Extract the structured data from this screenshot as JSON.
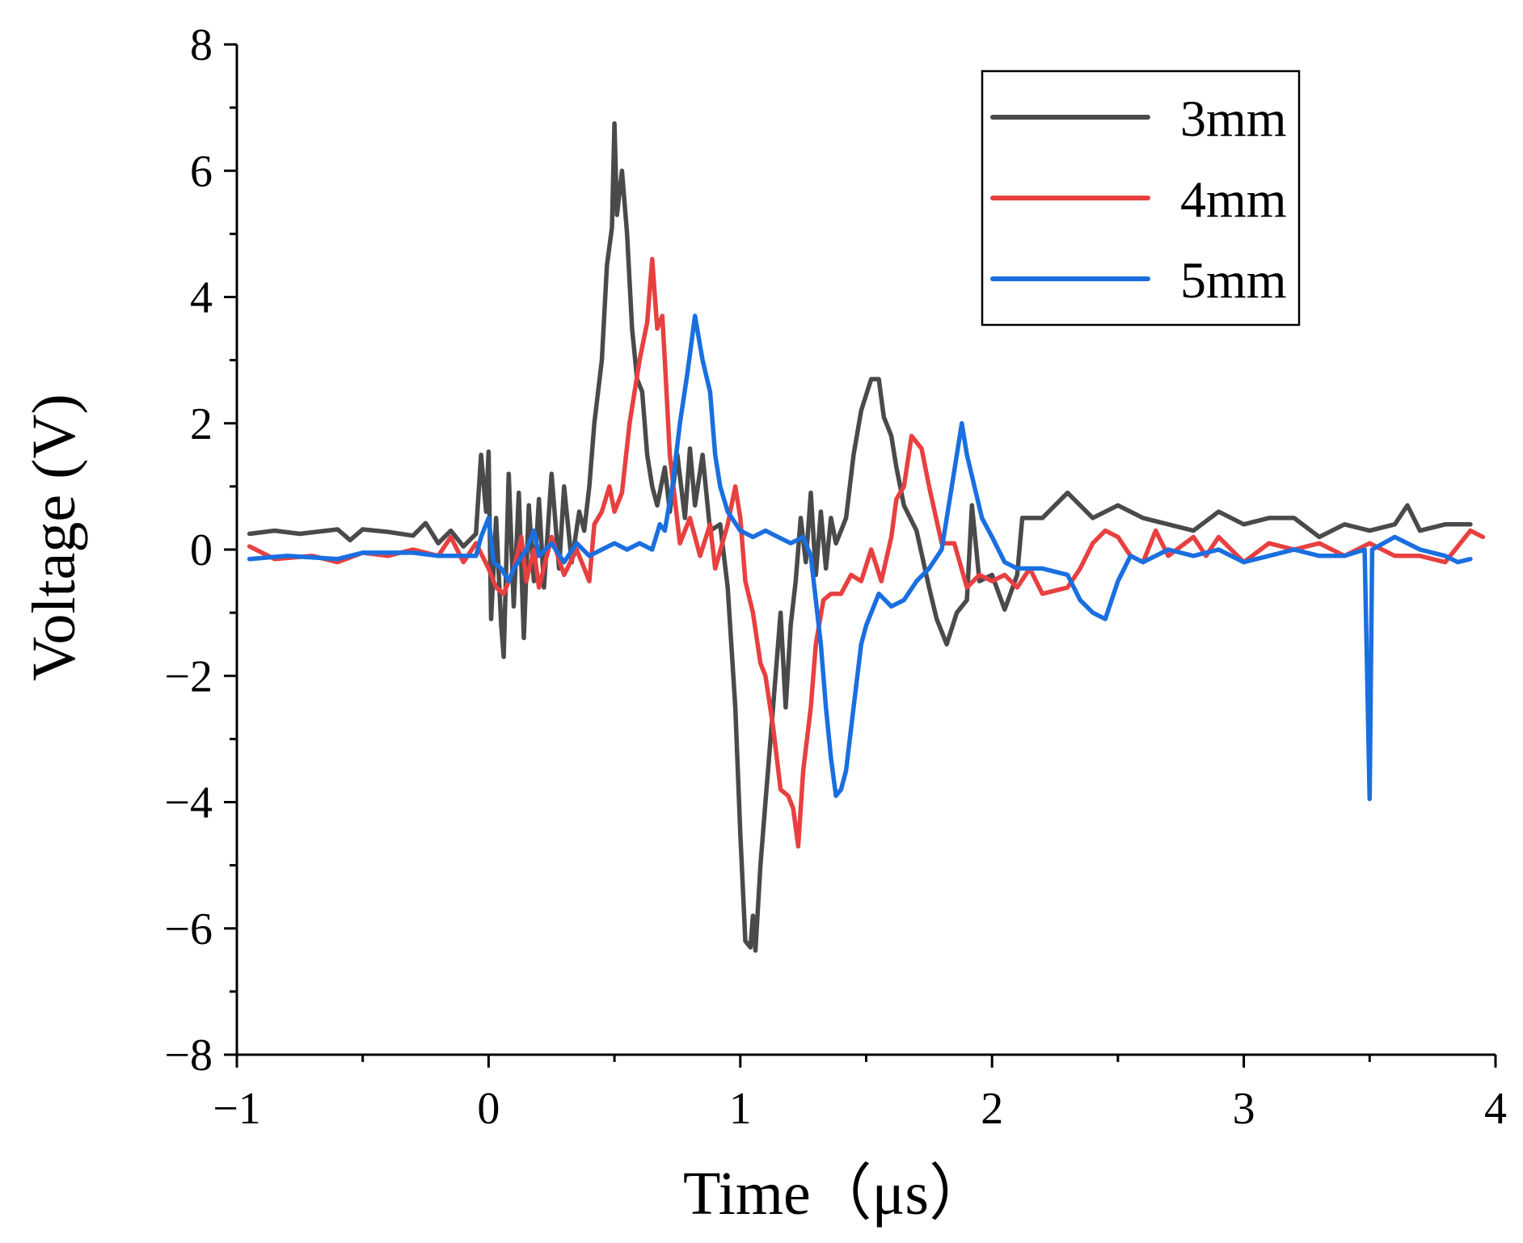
{
  "chart_data": {
    "type": "line",
    "title": "",
    "xlabel": "Time（μs）",
    "ylabel": "Voltage (V)",
    "xlim": [
      -1,
      4
    ],
    "ylim": [
      -8,
      8
    ],
    "x_ticks": [
      -1,
      0,
      1,
      2,
      3,
      4
    ],
    "x_tick_labels": [
      "−1",
      "0",
      "1",
      "2",
      "3",
      "4"
    ],
    "y_ticks": [
      -8,
      -6,
      -4,
      -2,
      0,
      2,
      4,
      6,
      8
    ],
    "y_tick_labels": [
      "−8",
      "−6",
      "−4",
      "−2",
      "0",
      "2",
      "4",
      "6",
      "8"
    ],
    "grid": false,
    "legend_position": "top-right",
    "series": [
      {
        "name": "3mm",
        "color": "#4a4a4a",
        "points": [
          [
            -0.95,
            0.25
          ],
          [
            -0.85,
            0.3
          ],
          [
            -0.75,
            0.25
          ],
          [
            -0.6,
            0.32
          ],
          [
            -0.55,
            0.15
          ],
          [
            -0.5,
            0.32
          ],
          [
            -0.4,
            0.28
          ],
          [
            -0.3,
            0.22
          ],
          [
            -0.25,
            0.42
          ],
          [
            -0.2,
            0.1
          ],
          [
            -0.15,
            0.3
          ],
          [
            -0.1,
            0.05
          ],
          [
            -0.05,
            0.25
          ],
          [
            -0.03,
            1.5
          ],
          [
            -0.01,
            0.6
          ],
          [
            0.0,
            1.55
          ],
          [
            0.01,
            -1.1
          ],
          [
            0.03,
            0.5
          ],
          [
            0.05,
            -1.2
          ],
          [
            0.06,
            -1.7
          ],
          [
            0.08,
            1.2
          ],
          [
            0.1,
            -0.9
          ],
          [
            0.12,
            0.9
          ],
          [
            0.14,
            -1.4
          ],
          [
            0.16,
            0.7
          ],
          [
            0.18,
            -0.5
          ],
          [
            0.2,
            0.8
          ],
          [
            0.22,
            -0.6
          ],
          [
            0.25,
            1.2
          ],
          [
            0.28,
            -0.3
          ],
          [
            0.3,
            1.0
          ],
          [
            0.33,
            -0.2
          ],
          [
            0.36,
            0.6
          ],
          [
            0.38,
            0.3
          ],
          [
            0.4,
            1.0
          ],
          [
            0.42,
            2.0
          ],
          [
            0.45,
            3.0
          ],
          [
            0.47,
            4.5
          ],
          [
            0.49,
            5.1
          ],
          [
            0.5,
            6.75
          ],
          [
            0.51,
            5.3
          ],
          [
            0.53,
            6.0
          ],
          [
            0.55,
            5.0
          ],
          [
            0.57,
            3.5
          ],
          [
            0.59,
            2.7
          ],
          [
            0.61,
            2.5
          ],
          [
            0.63,
            1.5
          ],
          [
            0.65,
            1.0
          ],
          [
            0.67,
            0.7
          ],
          [
            0.7,
            1.3
          ],
          [
            0.72,
            0.6
          ],
          [
            0.75,
            1.5
          ],
          [
            0.78,
            0.5
          ],
          [
            0.8,
            1.6
          ],
          [
            0.82,
            0.7
          ],
          [
            0.85,
            1.5
          ],
          [
            0.88,
            0.3
          ],
          [
            0.92,
            0.4
          ],
          [
            0.95,
            -0.6
          ],
          [
            0.98,
            -2.5
          ],
          [
            1.0,
            -4.5
          ],
          [
            1.02,
            -6.2
          ],
          [
            1.04,
            -6.3
          ],
          [
            1.05,
            -5.8
          ],
          [
            1.06,
            -6.35
          ],
          [
            1.08,
            -5.0
          ],
          [
            1.1,
            -4.0
          ],
          [
            1.12,
            -3.0
          ],
          [
            1.14,
            -2.0
          ],
          [
            1.16,
            -1.0
          ],
          [
            1.18,
            -2.5
          ],
          [
            1.2,
            -1.2
          ],
          [
            1.22,
            -0.5
          ],
          [
            1.24,
            0.5
          ],
          [
            1.26,
            -0.2
          ],
          [
            1.28,
            0.9
          ],
          [
            1.3,
            -0.4
          ],
          [
            1.32,
            0.6
          ],
          [
            1.34,
            -0.3
          ],
          [
            1.36,
            0.5
          ],
          [
            1.38,
            0.1
          ],
          [
            1.4,
            0.3
          ],
          [
            1.42,
            0.5
          ],
          [
            1.45,
            1.5
          ],
          [
            1.48,
            2.2
          ],
          [
            1.52,
            2.7
          ],
          [
            1.55,
            2.7
          ],
          [
            1.57,
            2.1
          ],
          [
            1.6,
            1.8
          ],
          [
            1.62,
            1.3
          ],
          [
            1.65,
            0.7
          ],
          [
            1.7,
            0.3
          ],
          [
            1.75,
            -0.6
          ],
          [
            1.78,
            -1.1
          ],
          [
            1.82,
            -1.5
          ],
          [
            1.86,
            -1.0
          ],
          [
            1.9,
            -0.8
          ],
          [
            1.92,
            0.7
          ],
          [
            1.95,
            -0.5
          ],
          [
            2.0,
            -0.4
          ],
          [
            2.05,
            -0.95
          ],
          [
            2.1,
            -0.4
          ],
          [
            2.12,
            0.5
          ],
          [
            2.2,
            0.5
          ],
          [
            2.3,
            0.9
          ],
          [
            2.4,
            0.5
          ],
          [
            2.5,
            0.7
          ],
          [
            2.6,
            0.5
          ],
          [
            2.7,
            0.4
          ],
          [
            2.8,
            0.3
          ],
          [
            2.9,
            0.6
          ],
          [
            3.0,
            0.4
          ],
          [
            3.1,
            0.5
          ],
          [
            3.2,
            0.5
          ],
          [
            3.3,
            0.2
          ],
          [
            3.4,
            0.4
          ],
          [
            3.5,
            0.3
          ],
          [
            3.6,
            0.4
          ],
          [
            3.65,
            0.7
          ],
          [
            3.7,
            0.3
          ],
          [
            3.8,
            0.4
          ],
          [
            3.9,
            0.4
          ]
        ]
      },
      {
        "name": "4mm",
        "color": "#e84040",
        "points": [
          [
            -0.95,
            0.05
          ],
          [
            -0.85,
            -0.15
          ],
          [
            -0.7,
            -0.1
          ],
          [
            -0.6,
            -0.2
          ],
          [
            -0.5,
            -0.05
          ],
          [
            -0.4,
            -0.1
          ],
          [
            -0.3,
            0.0
          ],
          [
            -0.2,
            -0.1
          ],
          [
            -0.15,
            0.2
          ],
          [
            -0.1,
            -0.2
          ],
          [
            -0.05,
            0.1
          ],
          [
            0.0,
            -0.3
          ],
          [
            0.03,
            -0.6
          ],
          [
            0.06,
            -0.7
          ],
          [
            0.1,
            -0.3
          ],
          [
            0.13,
            0.2
          ],
          [
            0.15,
            -0.5
          ],
          [
            0.18,
            0.0
          ],
          [
            0.2,
            -0.6
          ],
          [
            0.25,
            0.2
          ],
          [
            0.3,
            -0.4
          ],
          [
            0.35,
            0.0
          ],
          [
            0.4,
            -0.5
          ],
          [
            0.42,
            0.4
          ],
          [
            0.45,
            0.6
          ],
          [
            0.48,
            1.0
          ],
          [
            0.5,
            0.6
          ],
          [
            0.53,
            0.9
          ],
          [
            0.56,
            2.0
          ],
          [
            0.6,
            3.0
          ],
          [
            0.63,
            3.6
          ],
          [
            0.65,
            4.6
          ],
          [
            0.67,
            3.5
          ],
          [
            0.69,
            3.7
          ],
          [
            0.7,
            3.0
          ],
          [
            0.72,
            1.5
          ],
          [
            0.74,
            0.8
          ],
          [
            0.76,
            0.1
          ],
          [
            0.8,
            0.5
          ],
          [
            0.84,
            -0.1
          ],
          [
            0.88,
            0.4
          ],
          [
            0.9,
            -0.3
          ],
          [
            0.95,
            0.4
          ],
          [
            0.98,
            1.0
          ],
          [
            1.0,
            0.5
          ],
          [
            1.02,
            -0.5
          ],
          [
            1.05,
            -1.0
          ],
          [
            1.08,
            -1.8
          ],
          [
            1.1,
            -2.0
          ],
          [
            1.13,
            -2.8
          ],
          [
            1.16,
            -3.8
          ],
          [
            1.19,
            -3.9
          ],
          [
            1.21,
            -4.1
          ],
          [
            1.23,
            -4.7
          ],
          [
            1.25,
            -3.5
          ],
          [
            1.28,
            -2.5
          ],
          [
            1.3,
            -1.5
          ],
          [
            1.33,
            -0.8
          ],
          [
            1.36,
            -0.7
          ],
          [
            1.4,
            -0.7
          ],
          [
            1.44,
            -0.4
          ],
          [
            1.48,
            -0.5
          ],
          [
            1.52,
            0.0
          ],
          [
            1.56,
            -0.5
          ],
          [
            1.6,
            0.2
          ],
          [
            1.62,
            0.8
          ],
          [
            1.65,
            1.0
          ],
          [
            1.68,
            1.8
          ],
          [
            1.72,
            1.6
          ],
          [
            1.75,
            1.0
          ],
          [
            1.8,
            0.1
          ],
          [
            1.85,
            0.1
          ],
          [
            1.9,
            -0.6
          ],
          [
            1.95,
            -0.4
          ],
          [
            2.0,
            -0.5
          ],
          [
            2.05,
            -0.4
          ],
          [
            2.1,
            -0.6
          ],
          [
            2.15,
            -0.3
          ],
          [
            2.2,
            -0.7
          ],
          [
            2.3,
            -0.6
          ],
          [
            2.35,
            -0.3
          ],
          [
            2.4,
            0.1
          ],
          [
            2.45,
            0.3
          ],
          [
            2.5,
            0.2
          ],
          [
            2.55,
            -0.1
          ],
          [
            2.6,
            -0.2
          ],
          [
            2.65,
            0.3
          ],
          [
            2.7,
            -0.1
          ],
          [
            2.8,
            0.2
          ],
          [
            2.85,
            -0.1
          ],
          [
            2.9,
            0.2
          ],
          [
            3.0,
            -0.2
          ],
          [
            3.1,
            0.1
          ],
          [
            3.2,
            0.0
          ],
          [
            3.3,
            0.1
          ],
          [
            3.4,
            -0.1
          ],
          [
            3.5,
            0.1
          ],
          [
            3.6,
            -0.1
          ],
          [
            3.7,
            -0.1
          ],
          [
            3.8,
            -0.2
          ],
          [
            3.9,
            0.3
          ],
          [
            3.95,
            0.2
          ]
        ]
      },
      {
        "name": "5mm",
        "color": "#1a6fe0",
        "points": [
          [
            -0.95,
            -0.15
          ],
          [
            -0.8,
            -0.1
          ],
          [
            -0.6,
            -0.15
          ],
          [
            -0.5,
            -0.05
          ],
          [
            -0.3,
            -0.05
          ],
          [
            -0.2,
            -0.1
          ],
          [
            -0.1,
            -0.1
          ],
          [
            -0.05,
            -0.1
          ],
          [
            -0.03,
            0.2
          ],
          [
            0.0,
            0.5
          ],
          [
            0.02,
            -0.2
          ],
          [
            0.05,
            -0.3
          ],
          [
            0.08,
            -0.5
          ],
          [
            0.1,
            -0.3
          ],
          [
            0.15,
            0.0
          ],
          [
            0.18,
            0.3
          ],
          [
            0.2,
            -0.1
          ],
          [
            0.25,
            0.1
          ],
          [
            0.3,
            -0.2
          ],
          [
            0.35,
            0.1
          ],
          [
            0.4,
            -0.1
          ],
          [
            0.45,
            0.0
          ],
          [
            0.5,
            0.1
          ],
          [
            0.55,
            0.0
          ],
          [
            0.6,
            0.1
          ],
          [
            0.65,
            0.0
          ],
          [
            0.68,
            0.4
          ],
          [
            0.7,
            0.3
          ],
          [
            0.73,
            1.0
          ],
          [
            0.76,
            2.0
          ],
          [
            0.79,
            2.8
          ],
          [
            0.82,
            3.7
          ],
          [
            0.85,
            3.0
          ],
          [
            0.88,
            2.5
          ],
          [
            0.9,
            1.5
          ],
          [
            0.92,
            1.0
          ],
          [
            0.95,
            0.6
          ],
          [
            1.0,
            0.3
          ],
          [
            1.05,
            0.2
          ],
          [
            1.1,
            0.3
          ],
          [
            1.15,
            0.2
          ],
          [
            1.2,
            0.1
          ],
          [
            1.25,
            0.2
          ],
          [
            1.28,
            -0.1
          ],
          [
            1.3,
            -0.8
          ],
          [
            1.32,
            -1.5
          ],
          [
            1.34,
            -2.5
          ],
          [
            1.36,
            -3.3
          ],
          [
            1.38,
            -3.9
          ],
          [
            1.4,
            -3.8
          ],
          [
            1.42,
            -3.5
          ],
          [
            1.45,
            -2.5
          ],
          [
            1.48,
            -1.5
          ],
          [
            1.5,
            -1.2
          ],
          [
            1.55,
            -0.7
          ],
          [
            1.6,
            -0.9
          ],
          [
            1.65,
            -0.8
          ],
          [
            1.7,
            -0.5
          ],
          [
            1.75,
            -0.3
          ],
          [
            1.8,
            0.0
          ],
          [
            1.84,
            1.0
          ],
          [
            1.88,
            2.0
          ],
          [
            1.9,
            1.5
          ],
          [
            1.93,
            1.0
          ],
          [
            1.96,
            0.5
          ],
          [
            2.0,
            0.2
          ],
          [
            2.05,
            -0.2
          ],
          [
            2.1,
            -0.3
          ],
          [
            2.2,
            -0.3
          ],
          [
            2.3,
            -0.4
          ],
          [
            2.35,
            -0.8
          ],
          [
            2.4,
            -1.0
          ],
          [
            2.45,
            -1.1
          ],
          [
            2.5,
            -0.5
          ],
          [
            2.55,
            -0.1
          ],
          [
            2.6,
            -0.2
          ],
          [
            2.7,
            0.0
          ],
          [
            2.8,
            -0.1
          ],
          [
            2.9,
            0.0
          ],
          [
            3.0,
            -0.2
          ],
          [
            3.1,
            -0.1
          ],
          [
            3.2,
            0.0
          ],
          [
            3.3,
            -0.1
          ],
          [
            3.4,
            -0.1
          ],
          [
            3.48,
            0.0
          ],
          [
            3.5,
            -3.95
          ],
          [
            3.51,
            0.0
          ],
          [
            3.6,
            0.2
          ],
          [
            3.7,
            0.0
          ],
          [
            3.8,
            -0.1
          ],
          [
            3.85,
            -0.2
          ],
          [
            3.9,
            -0.15
          ]
        ]
      }
    ]
  }
}
